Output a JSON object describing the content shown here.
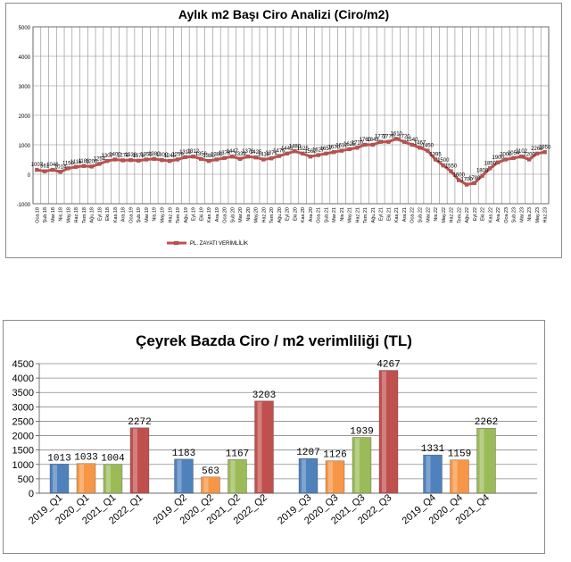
{
  "chart_data": [
    {
      "type": "line",
      "title": "Aylık m2 Başı Ciro Analizi (Ciro/m2)",
      "yticks": [
        "5000",
        "4000",
        "3000",
        "2000",
        "1000",
        "0",
        "-1000"
      ],
      "ylim": [
        -1000,
        5000
      ],
      "categories": [
        "Oca.18",
        "Şub.18",
        "Mar.18",
        "Nis.18",
        "May.18",
        "Haz.18",
        "Tem.18",
        "Ağu.18",
        "Eyl.18",
        "Eki.18",
        "Kas.18",
        "Ara.18",
        "Oca.19",
        "Şub.19",
        "Mar.19",
        "Nis.19",
        "May.19",
        "Haz.19",
        "Tem.19",
        "Ağu.19",
        "Eyl.19",
        "Eki.19",
        "Kas.19",
        "Ara.19",
        "Oca.20",
        "Şub.20",
        "Mar.20",
        "Nis.20",
        "May.20",
        "Haz.20",
        "Tem.20",
        "Ağu.20",
        "Eyl.20",
        "Eki.20",
        "Kas.20",
        "Ara.20",
        "Oca.21",
        "Şub.21",
        "Mar.21",
        "Nis.21",
        "May.21",
        "Haz.21",
        "Tem.21",
        "Ağu.21",
        "Eyl.21",
        "Eki.21",
        "Kas.21",
        "Ara.21",
        "Oca.22",
        "Şub.22",
        "Mar.22",
        "Nis.22",
        "May.22",
        "Haz.22",
        "Tem.22",
        "Ağu.22",
        "Eyl.22",
        "Eki.22",
        "Kas.22",
        "Ara.22",
        "Oca.23",
        "Şub.23",
        "Mar.23",
        "Nis.23",
        "May.23",
        "Haz.23"
      ],
      "series": [
        {
          "name": "PL. ZAYATI VERİMLİLİK",
          "color": "#c0504d",
          "values": [
            150,
            100,
            150,
            80,
            200,
            250,
            280,
            260,
            350,
            450,
            500,
            470,
            480,
            460,
            500,
            520,
            480,
            450,
            500,
            580,
            600,
            520,
            450,
            500,
            550,
            600,
            520,
            600,
            570,
            500,
            540,
            620,
            700,
            780,
            700,
            600,
            650,
            700,
            750,
            800,
            850,
            900,
            1000,
            1000,
            1100,
            1100,
            1200,
            1100,
            1000,
            900,
            800,
            500,
            300,
            100,
            -200,
            -350,
            -300,
            -50,
            200,
            400,
            500,
            550,
            600,
            500,
            700,
            750
          ],
          "labels": [
            "1007",
            "961",
            "1046",
            "1014",
            "1150",
            "1116",
            "1186",
            "1200",
            "1254",
            "1307",
            "1400",
            "1274",
            "1336",
            "1378",
            "1355",
            "1380",
            "1300",
            "1245",
            "1259",
            "1313",
            "1312",
            "1356",
            "1380",
            "1380",
            "1376",
            "1447",
            "1339",
            "1376",
            "1425",
            "1413",
            "1371",
            "1476",
            "1445",
            "1480",
            "1525",
            "1562",
            "1627",
            "1657",
            "1670",
            "1612",
            "1625",
            "1710",
            "1760",
            "1843",
            "1777",
            "1770",
            "1610",
            "1720",
            "1540",
            "1467",
            "1450",
            "1395",
            "1500",
            "1550",
            "1600",
            "1700",
            "1780",
            "1800",
            "1850",
            "1900",
            "2000",
            "2054",
            "2102",
            "2200",
            "2268",
            "1950"
          ]
        }
      ]
    },
    {
      "type": "bar",
      "title": "Çeyrek Bazda Ciro / m2 verimliliği (TL)",
      "ylim": [
        0,
        4500
      ],
      "yticks": [
        "4500",
        "4000",
        "3500",
        "3000",
        "2500",
        "2000",
        "1500",
        "1000",
        "500",
        "0"
      ],
      "categories": [
        "2019_Q1",
        "2020_Q1",
        "2021_Q1",
        "2022_Q1",
        "2019_Q2",
        "2020_Q2",
        "2021_Q2",
        "2022_Q2",
        "2019_Q3",
        "2020_Q3",
        "2021_Q3",
        "2022_Q3",
        "2019_Q4",
        "2020_Q4",
        "2021_Q4"
      ],
      "values": [
        1013,
        1033,
        1004,
        2272,
        1183,
        563,
        1167,
        3203,
        1207,
        1126,
        1939,
        4267,
        1331,
        1159,
        2262
      ],
      "value_labels": [
        "1013",
        "1033",
        "1004",
        "2272",
        "1183",
        "563",
        "1167",
        "3203",
        "1207",
        "1126",
        "1939",
        "4267",
        "1331",
        "1159",
        "2262"
      ],
      "colors": {
        "2019": "#4f81bd",
        "2020": "#f79646",
        "2021": "#9bbb59",
        "2022": "#c0504d"
      }
    }
  ]
}
